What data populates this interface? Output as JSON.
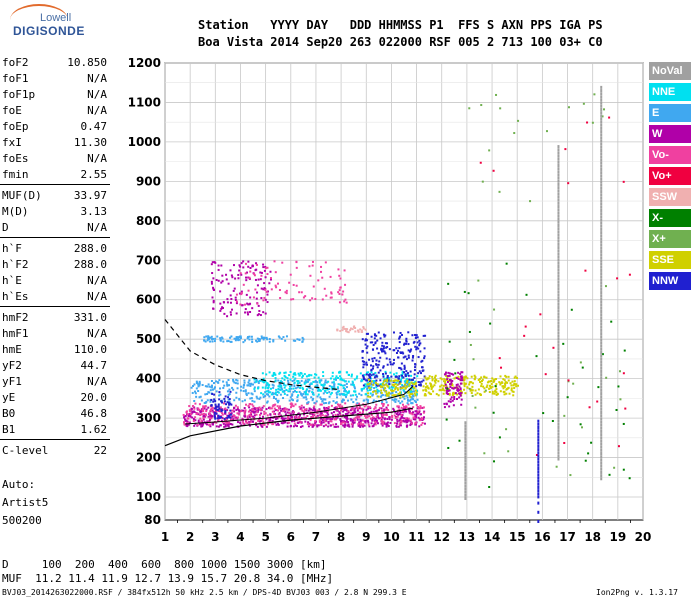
{
  "logo": {
    "top": "Lowell",
    "main": "DIGISONDE"
  },
  "header": {
    "line1": "Station   YYYY DAY   DDD HHMMSS P1  FFS S AXN PPS IGA PS",
    "line2": "Boa Vista 2014 Sep20 263 022000 RSF 005 2 713 100 03+ C0"
  },
  "params": [
    {
      "k": "foF2",
      "v": "10.850"
    },
    {
      "k": "foF1",
      "v": "N/A"
    },
    {
      "k": "foF1p",
      "v": "N/A"
    },
    {
      "k": "foE",
      "v": "N/A"
    },
    {
      "k": "foEp",
      "v": "0.47"
    },
    {
      "k": "fxI",
      "v": "11.30"
    },
    {
      "k": "foEs",
      "v": "N/A"
    },
    {
      "k": "fmin",
      "v": "2.55"
    },
    {
      "k": "MUF(D)",
      "v": "33.97"
    },
    {
      "k": "M(D)",
      "v": "3.13"
    },
    {
      "k": "D",
      "v": "N/A"
    },
    {
      "k": "h`F",
      "v": "288.0"
    },
    {
      "k": "h`F2",
      "v": "288.0"
    },
    {
      "k": "h`E",
      "v": "N/A"
    },
    {
      "k": "h`Es",
      "v": "N/A"
    },
    {
      "k": "hmF2",
      "v": "331.0"
    },
    {
      "k": "hmF1",
      "v": "N/A"
    },
    {
      "k": "hmE",
      "v": "110.0"
    },
    {
      "k": "yF2",
      "v": "44.7"
    },
    {
      "k": "yF1",
      "v": "N/A"
    },
    {
      "k": "yE",
      "v": "20.0"
    },
    {
      "k": "B0",
      "v": "46.8"
    },
    {
      "k": "B1",
      "v": "1.62"
    },
    {
      "k": "C-level",
      "v": "22"
    }
  ],
  "auto": {
    "line1": "Auto:",
    "line2": "Artist5",
    "line3": "500200"
  },
  "legend": [
    {
      "label": "NoVal",
      "bg": "#a0a0a0",
      "fg": "#ffffff"
    },
    {
      "label": "NNE",
      "bg": "#00e0f0",
      "fg": "#ffffff"
    },
    {
      "label": "E",
      "bg": "#40a8f0",
      "fg": "#ffffff"
    },
    {
      "label": "W",
      "bg": "#b000a8",
      "fg": "#ffffff"
    },
    {
      "label": "Vo-",
      "bg": "#f040a0",
      "fg": "#ffffff"
    },
    {
      "label": "Vo+",
      "bg": "#f00040",
      "fg": "#ffffff"
    },
    {
      "label": "SSW",
      "bg": "#f0b0b0",
      "fg": "#ffffff"
    },
    {
      "label": "X-",
      "bg": "#008000",
      "fg": "#ffffff"
    },
    {
      "label": "X+",
      "bg": "#70b050",
      "fg": "#ffffff"
    },
    {
      "label": "SSE",
      "bg": "#d0d000",
      "fg": "#ffffff"
    },
    {
      "label": "NNW",
      "bg": "#2020d0",
      "fg": "#ffffff"
    }
  ],
  "footer": {
    "d_line": "D     100  200  400  600  800 1000 1500 3000 [km]",
    "muf_line": "MUF  11.2 11.4 11.9 12.7 13.9 15.7 20.8 34.0 [MHz]",
    "file_line": "BVJ03_2014263022000.RSF / 384fx512h 50 kHz 2.5 km / DPS-4D BVJ03 003 / 2.8 N 299.3 E",
    "version": "Ion2Png v. 1.3.17"
  },
  "chart_data": {
    "type": "scatter",
    "title": "",
    "xlabel": "",
    "ylabel": "",
    "xlim": [
      1,
      20
    ],
    "ylim": [
      80,
      1200
    ],
    "x_ticks": [
      1,
      2,
      3,
      4,
      5,
      6,
      7,
      8,
      9,
      10,
      11,
      12,
      13,
      14,
      15,
      16,
      17,
      18,
      19,
      20
    ],
    "y_ticks": [
      80,
      100,
      200,
      300,
      400,
      500,
      600,
      700,
      800,
      900,
      1000,
      1100,
      1200
    ],
    "grid": true,
    "legend_position": "right",
    "clusters": [
      {
        "series": "W",
        "color": "#b000a8",
        "x": [
          1.7,
          11.3
        ],
        "y": [
          280,
          330
        ],
        "n": 700
      },
      {
        "series": "Vo-",
        "color": "#f040a0",
        "x": [
          1.7,
          11.3
        ],
        "y": [
          285,
          340
        ],
        "n": 400
      },
      {
        "series": "E",
        "color": "#40a8f0",
        "x": [
          2.0,
          11.0
        ],
        "y": [
          340,
          400
        ],
        "n": 450
      },
      {
        "series": "NNE",
        "color": "#00e0f0",
        "x": [
          4.5,
          11.0
        ],
        "y": [
          360,
          420
        ],
        "n": 300
      },
      {
        "series": "NNW",
        "color": "#2020d0",
        "x": [
          8.8,
          11.3
        ],
        "y": [
          380,
          520
        ],
        "n": 250
      },
      {
        "series": "NNW",
        "color": "#2020d0",
        "x": [
          2.8,
          3.6
        ],
        "y": [
          300,
          370
        ],
        "n": 60
      },
      {
        "series": "SSE",
        "color": "#d0d000",
        "x": [
          11.2,
          15.0
        ],
        "y": [
          360,
          410
        ],
        "n": 250
      },
      {
        "series": "SSE",
        "color": "#d0d000",
        "x": [
          9.0,
          11.0
        ],
        "y": [
          355,
          400
        ],
        "n": 100
      },
      {
        "series": "W",
        "color": "#b000a8",
        "x": [
          2.8,
          5.2
        ],
        "y": [
          560,
          700
        ],
        "n": 130
      },
      {
        "series": "Vo-",
        "color": "#f040a0",
        "x": [
          3.8,
          8.2
        ],
        "y": [
          590,
          700
        ],
        "n": 90
      },
      {
        "series": "E",
        "color": "#40a8f0",
        "x": [
          2.5,
          6.5
        ],
        "y": [
          495,
          510
        ],
        "n": 90
      },
      {
        "series": "SSW",
        "color": "#f0b0b0",
        "x": [
          7.8,
          9.0
        ],
        "y": [
          520,
          535
        ],
        "n": 30
      },
      {
        "series": "W",
        "color": "#b000a8",
        "x": [
          12.0,
          12.8
        ],
        "y": [
          330,
          420
        ],
        "n": 80
      },
      {
        "series": "X-",
        "color": "#008000",
        "x": [
          12.0,
          19.5
        ],
        "y": [
          120,
          700
        ],
        "n": 40
      },
      {
        "series": "X+",
        "color": "#70b050",
        "x": [
          13.0,
          19.5
        ],
        "y": [
          150,
          1150
        ],
        "n": 40
      },
      {
        "series": "Vo+",
        "color": "#f00040",
        "x": [
          13.0,
          19.5
        ],
        "y": [
          200,
          1100
        ],
        "n": 25
      }
    ],
    "vertical_traces": [
      {
        "series": "NNW",
        "color": "#2020d0",
        "x": 15.8,
        "y": [
          80,
          300
        ]
      },
      {
        "series": "NoVal",
        "color": "#a0a0a0",
        "x": 16.6,
        "y": [
          200,
          1000
        ]
      },
      {
        "series": "NoVal",
        "color": "#a0a0a0",
        "x": 18.3,
        "y": [
          150,
          1150
        ]
      },
      {
        "series": "NoVal",
        "color": "#a0a0a0",
        "x": 12.9,
        "y": [
          100,
          300
        ]
      }
    ],
    "profile_curves": [
      {
        "name": "solid",
        "style": "solid",
        "x": [
          1,
          2,
          4,
          6,
          8,
          10,
          10.85
        ],
        "y": [
          230,
          255,
          280,
          295,
          305,
          315,
          325
        ]
      },
      {
        "name": "dashed",
        "style": "dashed",
        "x": [
          1,
          2,
          3,
          4,
          5,
          6,
          7,
          8
        ],
        "y": [
          550,
          470,
          435,
          410,
          395,
          385,
          378,
          372
        ]
      },
      {
        "name": "hmF2-trace",
        "style": "solid-thin",
        "x": [
          1.8,
          3,
          5,
          7,
          9,
          10.5,
          10.85
        ],
        "y": [
          285,
          290,
          300,
          315,
          335,
          360,
          380
        ]
      }
    ]
  }
}
